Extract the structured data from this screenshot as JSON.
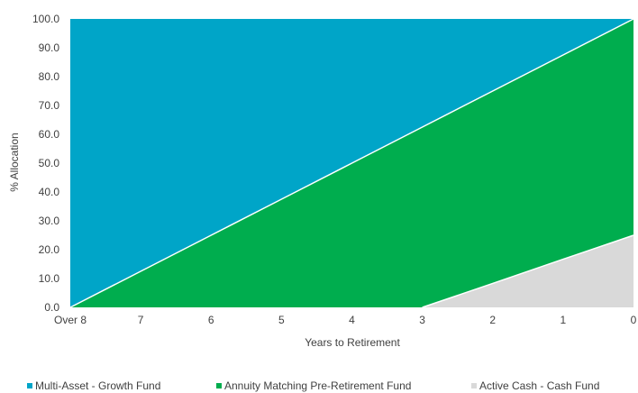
{
  "chart_data": {
    "type": "area",
    "stacked": true,
    "title": "",
    "xlabel": "Years to Retirement",
    "ylabel": "% Allocation",
    "ylim": [
      0,
      100
    ],
    "y_ticks": [
      "0.0",
      "10.0",
      "20.0",
      "30.0",
      "40.0",
      "50.0",
      "60.0",
      "70.0",
      "80.0",
      "90.0",
      "100.0"
    ],
    "categories": [
      "Over 8",
      "7",
      "6",
      "5",
      "4",
      "3",
      "2",
      "1",
      "0"
    ],
    "grid": false,
    "legend_position": "bottom",
    "series": [
      {
        "name": "Active Cash - Cash Fund",
        "color": "#d9d9d9",
        "values": [
          0,
          0,
          0,
          0,
          0,
          0,
          8.3,
          16.7,
          25
        ]
      },
      {
        "name": "Annuity Matching Pre-Retirement Fund",
        "color": "#00ad4e",
        "values": [
          0,
          12.5,
          25,
          37.5,
          50,
          62.5,
          66.7,
          70.8,
          75
        ]
      },
      {
        "name": "Multi-Asset - Growth Fund",
        "color": "#00a5c8",
        "values": [
          100,
          87.5,
          75,
          62.5,
          50,
          37.5,
          25,
          12.5,
          0
        ]
      }
    ],
    "legend": [
      "Multi-Asset - Growth Fund",
      "Annuity Matching Pre-Retirement Fund",
      "Active Cash - Cash Fund"
    ]
  }
}
